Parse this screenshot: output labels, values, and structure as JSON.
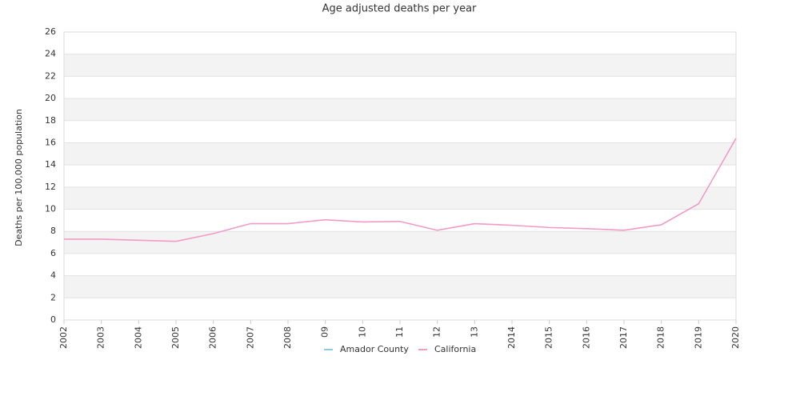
{
  "chart_data": {
    "type": "line",
    "title": "Age adjusted deaths per year",
    "y_label": "Deaths per 100,000 population",
    "categories": [
      "2002",
      "2003",
      "2004",
      "2005",
      "2006",
      "2007",
      "2008",
      "09",
      "10",
      "11",
      "12",
      "13",
      "2014",
      "2015",
      "2016",
      "2017",
      "2018",
      "2019",
      "2020"
    ],
    "series": [
      {
        "name": "Amador County",
        "color": "#8ec9e0",
        "values": [
          null,
          null,
          null,
          null,
          null,
          null,
          null,
          null,
          null,
          null,
          null,
          null,
          null,
          null,
          null,
          null,
          null,
          null,
          null
        ]
      },
      {
        "name": "California",
        "color": "#f19bc8",
        "values": [
          7.3,
          7.3,
          7.2,
          7.1,
          7.8,
          8.7,
          8.7,
          9.05,
          8.85,
          8.9,
          8.1,
          8.7,
          8.55,
          8.35,
          8.25,
          8.1,
          8.6,
          10.5,
          16.4
        ]
      }
    ],
    "ylim": [
      0,
      26
    ],
    "yticks": [
      0,
      2,
      4,
      6,
      8,
      10,
      12,
      14,
      16,
      18,
      20,
      22,
      24,
      26
    ],
    "grid": true,
    "legend": "bottom"
  }
}
